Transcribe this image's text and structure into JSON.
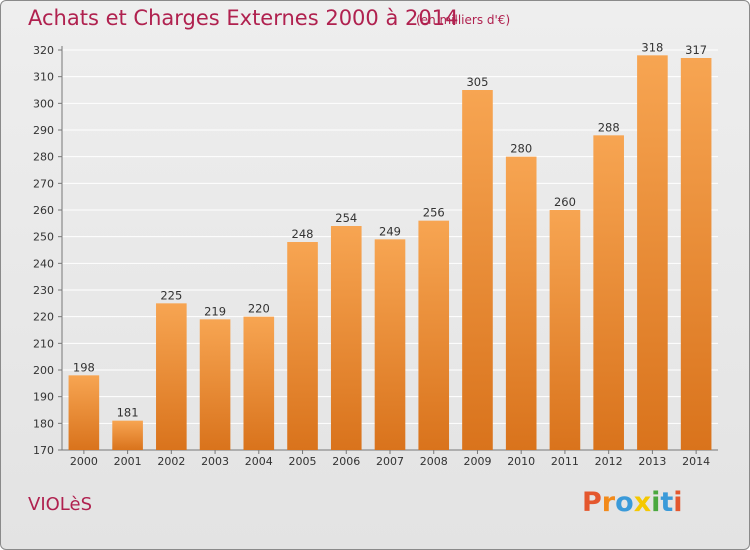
{
  "header": {
    "title": "Achats et Charges Externes 2000 à 2014",
    "subtitle": "(en milliers d'€)"
  },
  "footer": {
    "commune": "VIOLèS",
    "logo": "Proxiti"
  },
  "colors": {
    "title": "#b0214f",
    "bar_light": "#f7a552",
    "bar_dark": "#d9731c",
    "grid": "#ffffff",
    "background": "#e8e8e8",
    "logo_letters": [
      "#e4572e",
      "#f28a1a",
      "#3a9ad9",
      "#f5c800",
      "#4aa83f",
      "#3a9ad9",
      "#e4572e"
    ]
  },
  "chart_data": {
    "type": "bar",
    "title": "Achats et Charges Externes 2000 à 2014",
    "subtitle": "(en milliers d'€)",
    "categories": [
      "2000",
      "2001",
      "2002",
      "2003",
      "2004",
      "2005",
      "2006",
      "2007",
      "2008",
      "2009",
      "2010",
      "2011",
      "2012",
      "2013",
      "2014"
    ],
    "values": [
      198,
      181,
      225,
      219,
      220,
      248,
      254,
      249,
      256,
      305,
      280,
      260,
      288,
      318,
      317
    ],
    "xlabel": "",
    "ylabel": "",
    "ylim": [
      170,
      320
    ],
    "yticks": [
      170,
      180,
      190,
      200,
      210,
      220,
      230,
      240,
      250,
      260,
      270,
      280,
      290,
      300,
      310,
      320
    ],
    "grid": true,
    "data_labels": true
  }
}
